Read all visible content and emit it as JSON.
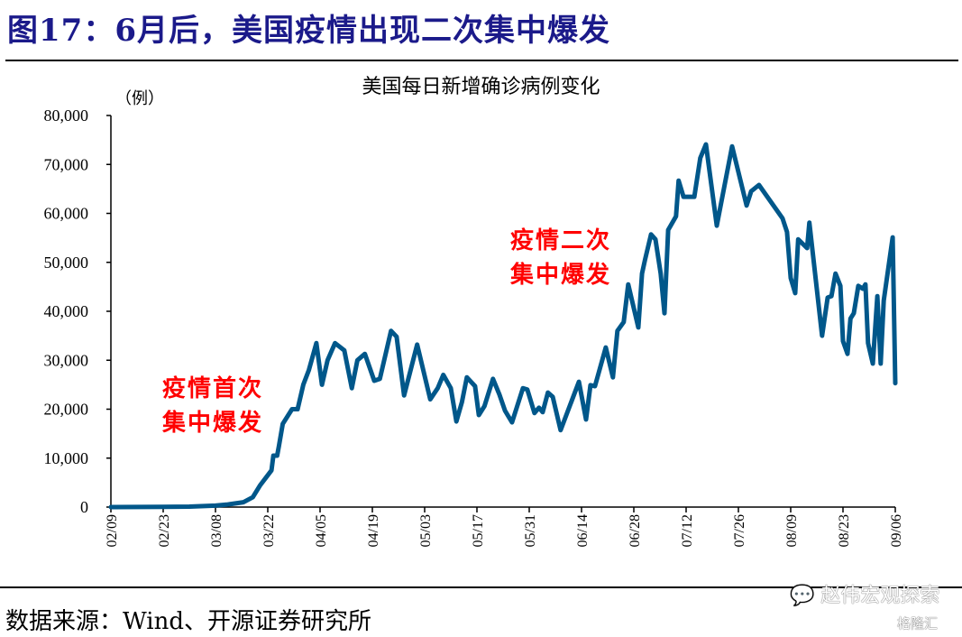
{
  "figure_title": "图17：6月后，美国疫情出现二次集中爆发",
  "source": "数据来源：Wind、开源证券研究所",
  "watermark": {
    "account": "赵伟宏观探索",
    "brand": "格隆汇"
  },
  "annotations": {
    "first_line1": "疫情首次",
    "first_line2": "集中爆发",
    "second_line1": "疫情二次",
    "second_line2": "集中爆发"
  },
  "chart_data": {
    "type": "line",
    "title": "美国每日新增确诊病例变化",
    "ylabel": "（例）",
    "xlabel": "",
    "ylim": [
      0,
      80000
    ],
    "x_start_date": "02/09",
    "x_unit": "days since 02/09",
    "xlim": [
      0,
      210
    ],
    "yticks": [
      "0",
      "10,000",
      "20,000",
      "30,000",
      "40,000",
      "50,000",
      "60,000",
      "70,000",
      "80,000"
    ],
    "xticks": [
      "02/09",
      "02/23",
      "03/08",
      "03/22",
      "04/05",
      "04/19",
      "05/03",
      "05/17",
      "05/31",
      "06/14",
      "06/28",
      "07/12",
      "07/26",
      "08/09",
      "08/23",
      "09/06"
    ],
    "grid": false,
    "line_color": "#00578a",
    "series": [
      {
        "name": "美国每日新增确诊病例",
        "points": [
          [
            0,
            0
          ],
          [
            14,
            50
          ],
          [
            21,
            100
          ],
          [
            28,
            300
          ],
          [
            31,
            500
          ],
          [
            35.5,
            1000
          ],
          [
            38,
            2000
          ],
          [
            40,
            4500
          ],
          [
            43,
            7500
          ],
          [
            43.5,
            10500
          ],
          [
            44.5,
            10500
          ],
          [
            45,
            12500
          ],
          [
            46,
            17000
          ],
          [
            48.5,
            20000
          ],
          [
            50,
            20000
          ],
          [
            51.5,
            25000
          ],
          [
            53,
            28000
          ],
          [
            55,
            33500
          ],
          [
            56.5,
            25000
          ],
          [
            58,
            30000
          ],
          [
            60,
            33500
          ],
          [
            62.5,
            32000
          ],
          [
            64.5,
            24300
          ],
          [
            66,
            30000
          ],
          [
            68,
            31300
          ],
          [
            70.5,
            25800
          ],
          [
            72,
            26200
          ],
          [
            75,
            36000
          ],
          [
            76.5,
            34800
          ],
          [
            78.5,
            22800
          ],
          [
            82,
            33200
          ],
          [
            85.5,
            22000
          ],
          [
            87.5,
            24300
          ],
          [
            89,
            27000
          ],
          [
            91,
            24300
          ],
          [
            92.5,
            17500
          ],
          [
            94,
            21500
          ],
          [
            95.3,
            26500
          ],
          [
            97.5,
            24700
          ],
          [
            98.5,
            18800
          ],
          [
            100,
            20600
          ],
          [
            102.3,
            26200
          ],
          [
            104,
            23000
          ],
          [
            105.5,
            19700
          ],
          [
            107.4,
            17300
          ],
          [
            110.3,
            24300
          ],
          [
            111.5,
            24000
          ],
          [
            113.4,
            19200
          ],
          [
            114.6,
            20300
          ],
          [
            115.6,
            19400
          ],
          [
            117,
            23400
          ],
          [
            118.3,
            22500
          ],
          [
            120.4,
            15700
          ],
          [
            125.3,
            25600
          ],
          [
            127.2,
            17900
          ],
          [
            128.4,
            24900
          ],
          [
            129.6,
            24700
          ],
          [
            132.5,
            32600
          ],
          [
            134.4,
            26500
          ],
          [
            135.6,
            36000
          ],
          [
            137.3,
            37800
          ],
          [
            138.5,
            45500
          ],
          [
            141.2,
            36700
          ],
          [
            142.2,
            47700
          ],
          [
            143,
            50500
          ],
          [
            144.6,
            55700
          ],
          [
            145.8,
            54700
          ],
          [
            147.2,
            47700
          ],
          [
            148.2,
            39600
          ],
          [
            149.2,
            56600
          ],
          [
            151.3,
            59400
          ],
          [
            152,
            66700
          ],
          [
            153.3,
            63400
          ],
          [
            156.2,
            63400
          ],
          [
            157.8,
            71300
          ],
          [
            159.3,
            74100
          ],
          [
            162.2,
            57500
          ],
          [
            166.3,
            73700
          ],
          [
            170.2,
            61600
          ],
          [
            171.4,
            64500
          ],
          [
            173.5,
            65800
          ],
          [
            179.8,
            59000
          ],
          [
            181,
            56200
          ],
          [
            182,
            46800
          ],
          [
            183.2,
            43700
          ],
          [
            184,
            54700
          ],
          [
            186.4,
            52900
          ],
          [
            187,
            58100
          ],
          [
            190.4,
            35000
          ],
          [
            191.9,
            42800
          ],
          [
            192.9,
            43100
          ],
          [
            194,
            47700
          ],
          [
            195.3,
            45200
          ],
          [
            196,
            33900
          ],
          [
            197.2,
            31300
          ],
          [
            198,
            38500
          ],
          [
            198.9,
            39600
          ],
          [
            200.1,
            45200
          ],
          [
            201.3,
            44600
          ],
          [
            202,
            45500
          ],
          [
            202.7,
            33500
          ],
          [
            204,
            29300
          ],
          [
            205.2,
            43100
          ],
          [
            206.1,
            29300
          ],
          [
            206.9,
            42200
          ],
          [
            209.3,
            55100
          ],
          [
            210,
            25300
          ]
        ]
      }
    ]
  }
}
